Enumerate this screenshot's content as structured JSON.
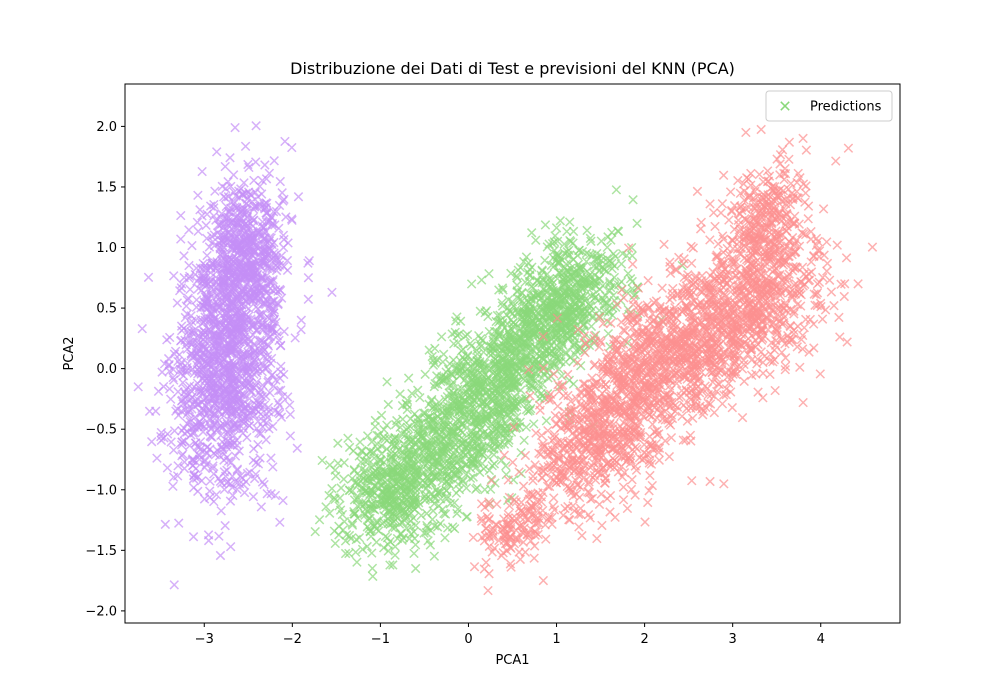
{
  "chart_data": {
    "type": "scatter",
    "title": "Distribuzione dei Dati di Test e previsioni del KNN (PCA)",
    "xlabel": "PCA1",
    "ylabel": "PCA2",
    "xlim": [
      -3.9,
      4.9
    ],
    "ylim": [
      -2.1,
      2.35
    ],
    "x_ticks": [
      -3,
      -2,
      -1,
      0,
      1,
      2,
      3,
      4
    ],
    "y_ticks": [
      -2.0,
      -1.5,
      -1.0,
      -0.5,
      0.0,
      0.5,
      1.0,
      1.5,
      2.0
    ],
    "marker": "x",
    "grid": false,
    "legend": {
      "placement": "top-right",
      "entries": [
        {
          "label": "Predictions",
          "color": "#8ad87a"
        }
      ]
    },
    "series": [
      {
        "color": "#c48ff7",
        "clusters": [
          {
            "center": [
              -2.75,
              0.05
            ],
            "sd": [
              0.3,
              0.55
            ],
            "rho": 0.2,
            "count": 1200
          },
          {
            "center": [
              -2.55,
              0.95
            ],
            "sd": [
              0.22,
              0.35
            ],
            "rho": 0.1,
            "count": 500
          }
        ],
        "extremes": [
          [
            -2.65,
            1.99
          ],
          [
            -3.75,
            -0.15
          ],
          [
            -1.55,
            0.63
          ],
          [
            -2.95,
            -1.42
          ],
          [
            -2.1,
            1.0
          ],
          [
            -2.7,
            -1.47
          ]
        ]
      },
      {
        "color": "#8ad87a",
        "clusters": [
          {
            "center": [
              -0.85,
              -0.98
            ],
            "sd": [
              0.3,
              0.25
            ],
            "rho": 0.3,
            "count": 450
          },
          {
            "center": [
              -0.1,
              -0.5
            ],
            "sd": [
              0.45,
              0.35
            ],
            "rho": 0.5,
            "count": 700
          },
          {
            "center": [
              0.65,
              0.2
            ],
            "sd": [
              0.45,
              0.35
            ],
            "rho": 0.6,
            "count": 700
          },
          {
            "center": [
              1.15,
              0.6
            ],
            "sd": [
              0.3,
              0.25
            ],
            "rho": 0.4,
            "count": 350
          }
        ],
        "extremes": [
          [
            1.15,
            1.21
          ],
          [
            -1.35,
            -0.65
          ],
          [
            -0.6,
            -1.65
          ],
          [
            1.75,
            0.95
          ],
          [
            -1.3,
            -1.2
          ],
          [
            -0.15,
            0.3
          ]
        ]
      },
      {
        "color": "#fc9090",
        "clusters": [
          {
            "center": [
              1.4,
              -0.6
            ],
            "sd": [
              0.4,
              0.35
            ],
            "rho": 0.5,
            "count": 500
          },
          {
            "center": [
              2.2,
              0.05
            ],
            "sd": [
              0.5,
              0.4
            ],
            "rho": 0.5,
            "count": 900
          },
          {
            "center": [
              3.2,
              0.5
            ],
            "sd": [
              0.45,
              0.3
            ],
            "rho": 0.3,
            "count": 600
          },
          {
            "center": [
              3.35,
              1.2
            ],
            "sd": [
              0.25,
              0.25
            ],
            "rho": 0.1,
            "count": 300
          },
          {
            "center": [
              0.45,
              -1.3
            ],
            "sd": [
              0.2,
              0.15
            ],
            "rho": 0.3,
            "count": 120
          }
        ],
        "extremes": [
          [
            3.15,
            1.95
          ],
          [
            4.3,
            0.22
          ],
          [
            0.85,
            -1.75
          ],
          [
            3.8,
            -0.28
          ],
          [
            4.15,
            0.52
          ],
          [
            0.2,
            -1.6
          ]
        ]
      }
    ]
  }
}
